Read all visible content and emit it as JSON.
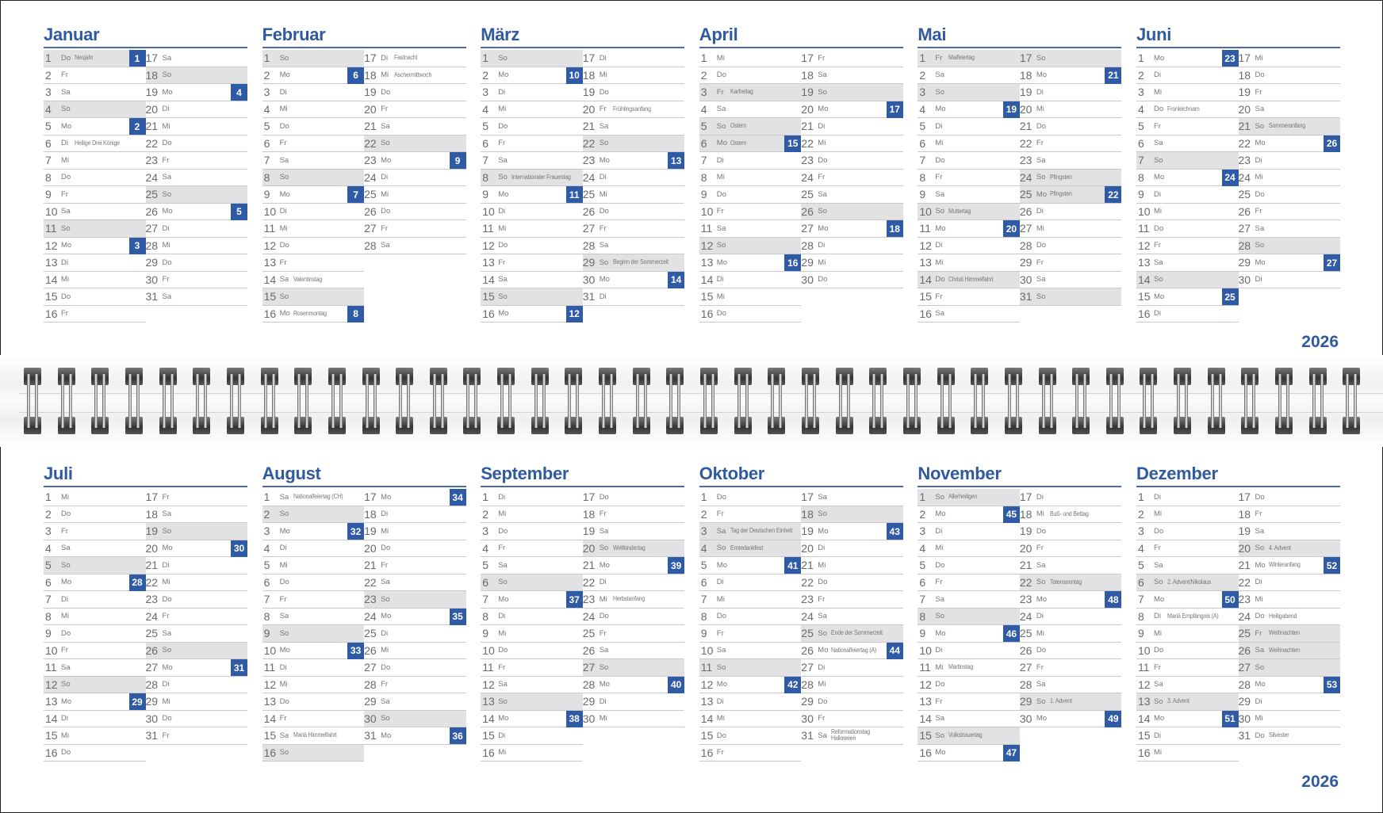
{
  "year": "2026",
  "weekday_labels": [
    "Mo",
    "Di",
    "Mi",
    "Do",
    "Fr",
    "Sa",
    "So"
  ],
  "colors": {
    "accent": "#2f5aa6",
    "title": "#2f5a9e",
    "shade": "#e2e2e5"
  },
  "months": [
    {
      "name": "Januar",
      "days": 31,
      "first_weekday": "Do",
      "holidays": {
        "1": "Neujahr",
        "6": "Heilige Drei Könige"
      },
      "shaded_holidays": [
        1
      ],
      "week_numbers": {
        "1": 1,
        "5": 2,
        "12": 3,
        "19": 4,
        "26": 5
      }
    },
    {
      "name": "Februar",
      "days": 28,
      "first_weekday": "So",
      "holidays": {
        "14": "Valentinstag",
        "16": "Rosenmontag",
        "17": "Fastnacht",
        "18": "Aschermittwoch"
      },
      "shaded_holidays": [],
      "week_numbers": {
        "2": 6,
        "9": 7,
        "16": 8,
        "23": 9
      }
    },
    {
      "name": "März",
      "days": 31,
      "first_weekday": "So",
      "holidays": {
        "8": "Internationaler Frauentag",
        "20": "Frühlingsanfang",
        "29": "Beginn der Sommerzeit"
      },
      "shaded_holidays": [],
      "week_numbers": {
        "2": 10,
        "9": 11,
        "16": 12,
        "23": 13,
        "30": 14
      }
    },
    {
      "name": "April",
      "days": 30,
      "first_weekday": "Mi",
      "holidays": {
        "3": "Karfreitag",
        "5": "Ostern",
        "6": "Ostern"
      },
      "shaded_holidays": [
        3,
        6
      ],
      "week_numbers": {
        "6": 15,
        "13": 16,
        "20": 17,
        "27": 18
      }
    },
    {
      "name": "Mai",
      "days": 31,
      "first_weekday": "Fr",
      "holidays": {
        "1": "Maifeiertag",
        "10": "Muttertag",
        "14": "Christi Himmelfahrt",
        "24": "Pfingsten",
        "25": "Pfingsten"
      },
      "shaded_holidays": [
        1,
        14,
        25
      ],
      "week_numbers": {
        "4": 19,
        "11": 20,
        "18": 21,
        "25": 22
      }
    },
    {
      "name": "Juni",
      "days": 30,
      "first_weekday": "Mo",
      "holidays": {
        "4": "Fronleichnam",
        "21": "Sommeranfang"
      },
      "shaded_holidays": [],
      "week_numbers": {
        "1": 23,
        "8": 24,
        "15": 25,
        "22": 26,
        "29": 27
      }
    },
    {
      "name": "Juli",
      "days": 31,
      "first_weekday": "Mi",
      "holidays": {},
      "shaded_holidays": [],
      "week_numbers": {
        "6": 28,
        "13": 29,
        "20": 30,
        "27": 31
      }
    },
    {
      "name": "August",
      "days": 31,
      "first_weekday": "Sa",
      "holidays": {
        "1": "Nationalfeiertag (CH)",
        "15": "Mariä Himmelfahrt"
      },
      "shaded_holidays": [],
      "week_numbers": {
        "3": 32,
        "10": 33,
        "17": 34,
        "24": 35,
        "31": 36
      }
    },
    {
      "name": "September",
      "days": 30,
      "first_weekday": "Di",
      "holidays": {
        "20": "Weltkindertag",
        "23": "Herbstanfang"
      },
      "shaded_holidays": [],
      "week_numbers": {
        "7": 37,
        "14": 38,
        "21": 39,
        "28": 40
      }
    },
    {
      "name": "Oktober",
      "days": 31,
      "first_weekday": "Do",
      "holidays": {
        "3": "Tag der Deutschen Einheit",
        "4": "Erntedankfest",
        "25": "Ende der Sommerzeit",
        "26": "Nationalfeiertag (A)",
        "31": "Reformationstag\nHalloween"
      },
      "shaded_holidays": [
        3
      ],
      "week_numbers": {
        "5": 41,
        "12": 42,
        "19": 43,
        "26": 44
      }
    },
    {
      "name": "November",
      "days": 30,
      "first_weekday": "So",
      "holidays": {
        "1": "Allerheiligen",
        "11": "Martinstag",
        "15": "Volkstrauertag",
        "18": "Buß- und Bettag",
        "22": "Totensonntag",
        "29": "1. Advent"
      },
      "shaded_holidays": [],
      "week_numbers": {
        "2": 45,
        "9": 46,
        "16": 47,
        "23": 48,
        "30": 49
      }
    },
    {
      "name": "Dezember",
      "days": 31,
      "first_weekday": "Di",
      "holidays": {
        "6": "2. Advent/Nikolaus",
        "8": "Mariä Empfängnis (A)",
        "13": "3. Advent",
        "20": "4. Advent",
        "21": "Winteranfang",
        "24": "Heiligabend",
        "25": "Weihnachten",
        "26": "Weihnachten",
        "31": "Silvester"
      },
      "shaded_holidays": [
        25,
        26
      ],
      "week_numbers": {
        "7": 50,
        "14": 51,
        "21": 52,
        "28": 53
      }
    }
  ]
}
